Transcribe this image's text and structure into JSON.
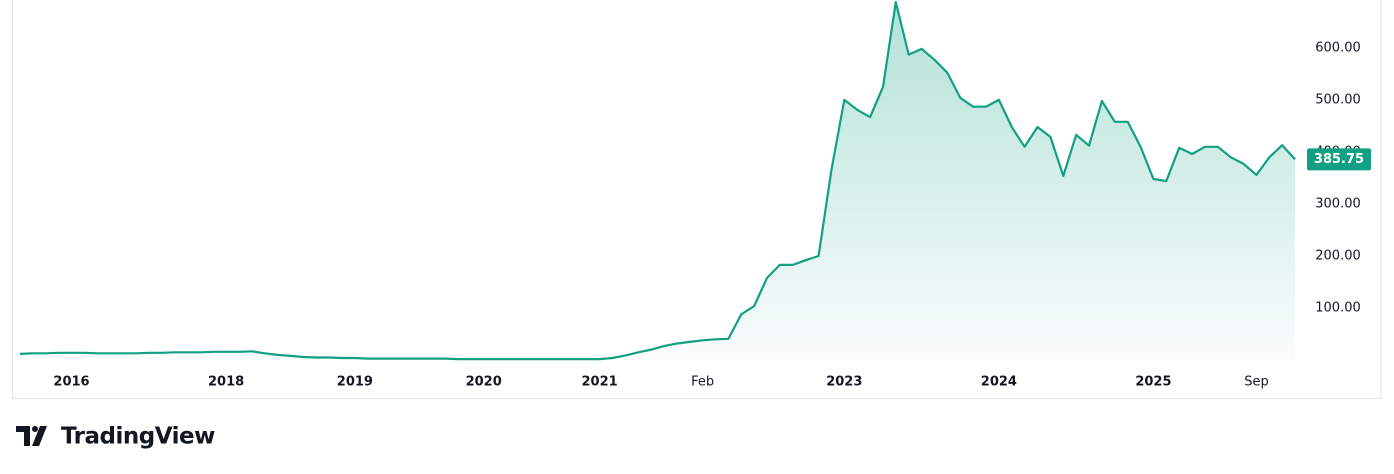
{
  "chart_data": {
    "type": "line",
    "categories": [
      null,
      null,
      null,
      null,
      "2016",
      null,
      null,
      null,
      null,
      null,
      null,
      null,
      null,
      null,
      null,
      null,
      "2018",
      null,
      null,
      null,
      null,
      null,
      null,
      null,
      null,
      null,
      "2019",
      null,
      null,
      null,
      null,
      null,
      null,
      null,
      null,
      null,
      "2020",
      null,
      null,
      null,
      null,
      null,
      null,
      null,
      null,
      "2021",
      null,
      null,
      null,
      null,
      null,
      null,
      null,
      "Feb",
      null,
      null,
      null,
      null,
      null,
      null,
      null,
      null,
      null,
      null,
      "2023",
      null,
      null,
      null,
      null,
      null,
      null,
      null,
      null,
      null,
      null,
      null,
      "2024",
      null,
      null,
      null,
      null,
      null,
      null,
      null,
      null,
      null,
      null,
      null,
      "2025",
      null,
      null,
      null,
      null,
      null,
      null,
      null,
      "Sep",
      null,
      null,
      null
    ],
    "series": [
      {
        "color": "#12a085",
        "values": [
          12,
          13,
          13,
          14,
          14,
          14,
          13,
          13,
          13,
          13,
          14,
          14,
          15,
          15,
          15,
          16,
          16,
          16,
          17,
          13,
          10,
          8,
          6,
          5,
          5,
          4,
          4,
          3,
          3,
          3,
          3,
          3,
          3,
          3,
          2,
          2,
          2,
          2,
          2,
          2,
          2,
          2,
          2,
          2,
          2,
          2,
          4,
          9,
          15,
          20,
          27,
          32,
          35,
          38,
          40,
          41,
          88,
          104,
          158,
          183,
          183,
          192,
          200,
          365,
          500,
          481,
          467,
          525,
          688,
          587,
          598,
          577,
          552,
          504,
          487,
          487,
          500,
          448,
          410,
          448,
          429,
          354,
          433,
          412,
          498,
          458,
          458,
          410,
          348,
          344,
          408,
          396,
          410,
          410,
          390,
          377,
          356,
          390,
          413,
          385.75
        ]
      }
    ],
    "ylim": [
      -19,
      692
    ],
    "yticks": [
      {
        "value": 100,
        "label": "100.00"
      },
      {
        "value": 200,
        "label": "200.00"
      },
      {
        "value": 300,
        "label": "300.00"
      },
      {
        "value": 400,
        "label": "400.00"
      },
      {
        "value": 500,
        "label": "500.00"
      },
      {
        "value": 600,
        "label": "600.00"
      }
    ],
    "grid": false,
    "area": true,
    "last_value_tag": true
  },
  "brand": "TradingView"
}
